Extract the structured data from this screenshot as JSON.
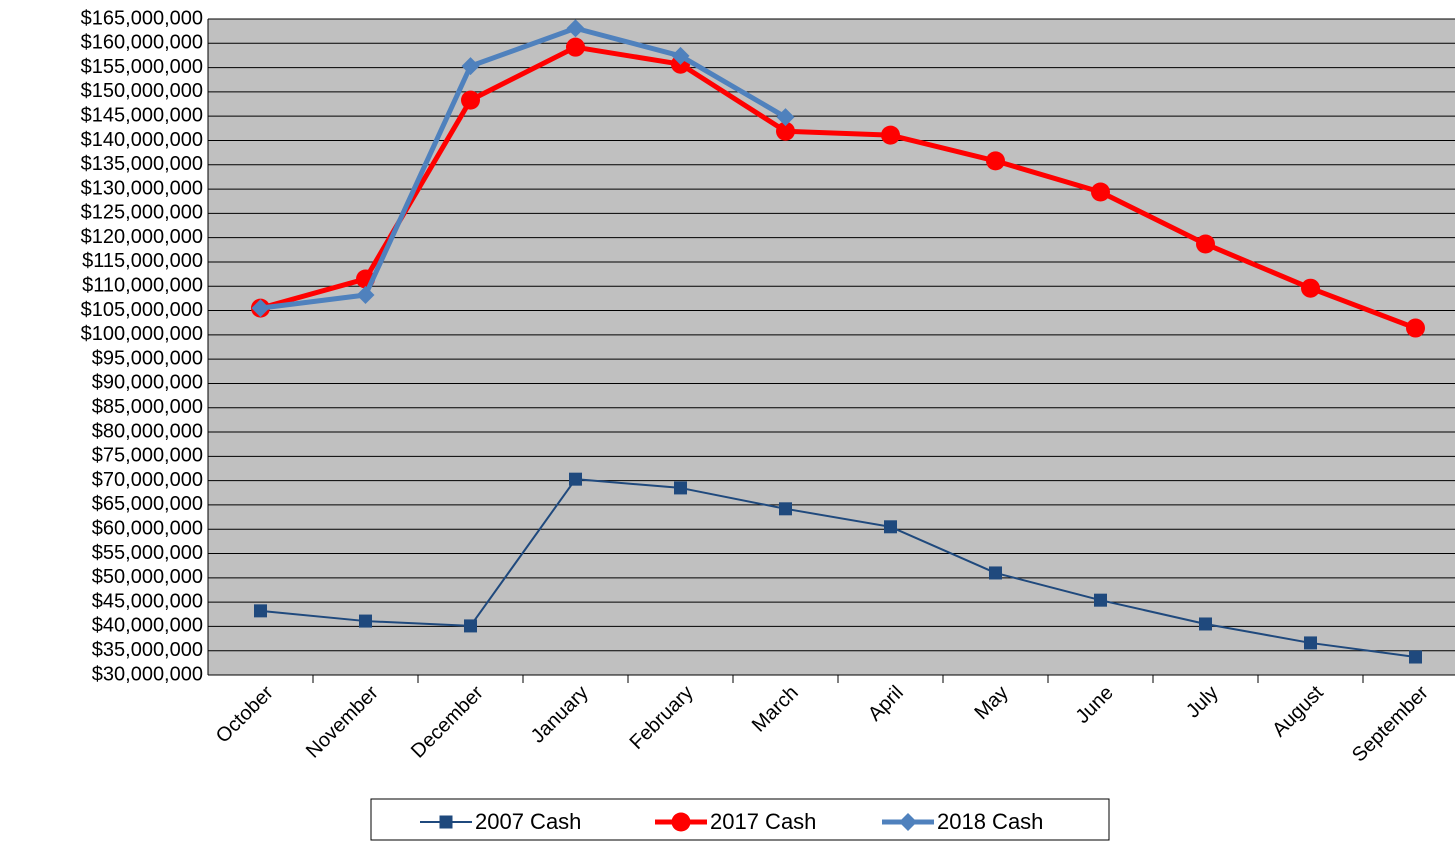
{
  "chart_data": {
    "type": "line",
    "categories": [
      "October",
      "November",
      "December",
      "January",
      "February",
      "March",
      "April",
      "May",
      "June",
      "July",
      "August",
      "September"
    ],
    "series": [
      {
        "name": "2007 Cash",
        "color": "#1f497d",
        "marker": "square",
        "line_width": 2,
        "values": [
          43200000,
          41100000,
          40100000,
          70300000,
          68500000,
          64200000,
          60500000,
          51000000,
          45400000,
          40500000,
          36600000,
          33700000
        ]
      },
      {
        "name": "2017 Cash",
        "color": "#ff0000",
        "marker": "circle",
        "line_width": 5,
        "values": [
          105500000,
          111500000,
          148300000,
          159200000,
          155700000,
          141900000,
          141100000,
          135800000,
          129400000,
          118700000,
          109600000,
          101400000
        ]
      },
      {
        "name": "2018 Cash",
        "color": "#4f81bd",
        "marker": "diamond",
        "line_width": 5,
        "values": [
          105500000,
          108200000,
          155300000,
          163100000,
          157400000,
          144800000,
          null,
          null,
          null,
          null,
          null,
          null
        ]
      }
    ],
    "ylim": [
      30000000,
      165000000
    ],
    "yticks": [
      {
        "value": 30000000,
        "label": "$30,000,000"
      },
      {
        "value": 35000000,
        "label": "$35,000,000"
      },
      {
        "value": 40000000,
        "label": "$40,000,000"
      },
      {
        "value": 45000000,
        "label": "$45,000,000"
      },
      {
        "value": 50000000,
        "label": "$50,000,000"
      },
      {
        "value": 55000000,
        "label": "$55,000,000"
      },
      {
        "value": 60000000,
        "label": "$60,000,000"
      },
      {
        "value": 65000000,
        "label": "$65,000,000"
      },
      {
        "value": 70000000,
        "label": "$70,000,000"
      },
      {
        "value": 75000000,
        "label": "$75,000,000"
      },
      {
        "value": 80000000,
        "label": "$80,000,000"
      },
      {
        "value": 85000000,
        "label": "$85,000,000"
      },
      {
        "value": 90000000,
        "label": "$90,000,000"
      },
      {
        "value": 95000000,
        "label": "$95,000,000"
      },
      {
        "value": 100000000,
        "label": "$100,000,000"
      },
      {
        "value": 105000000,
        "label": "$105,000,000"
      },
      {
        "value": 110000000,
        "label": "$110,000,000"
      },
      {
        "value": 115000000,
        "label": "$115,000,000"
      },
      {
        "value": 120000000,
        "label": "$120,000,000"
      },
      {
        "value": 125000000,
        "label": "$125,000,000"
      },
      {
        "value": 130000000,
        "label": "$130,000,000"
      },
      {
        "value": 135000000,
        "label": "$135,000,000"
      },
      {
        "value": 140000000,
        "label": "$140,000,000"
      },
      {
        "value": 145000000,
        "label": "$145,000,000"
      },
      {
        "value": 150000000,
        "label": "$150,000,000"
      },
      {
        "value": 155000000,
        "label": "$155,000,000"
      },
      {
        "value": 160000000,
        "label": "$160,000,000"
      },
      {
        "value": 165000000,
        "label": "$165,000,000"
      }
    ],
    "grid": true,
    "plot_background": "#c0c0c0",
    "legend_position": "bottom"
  }
}
